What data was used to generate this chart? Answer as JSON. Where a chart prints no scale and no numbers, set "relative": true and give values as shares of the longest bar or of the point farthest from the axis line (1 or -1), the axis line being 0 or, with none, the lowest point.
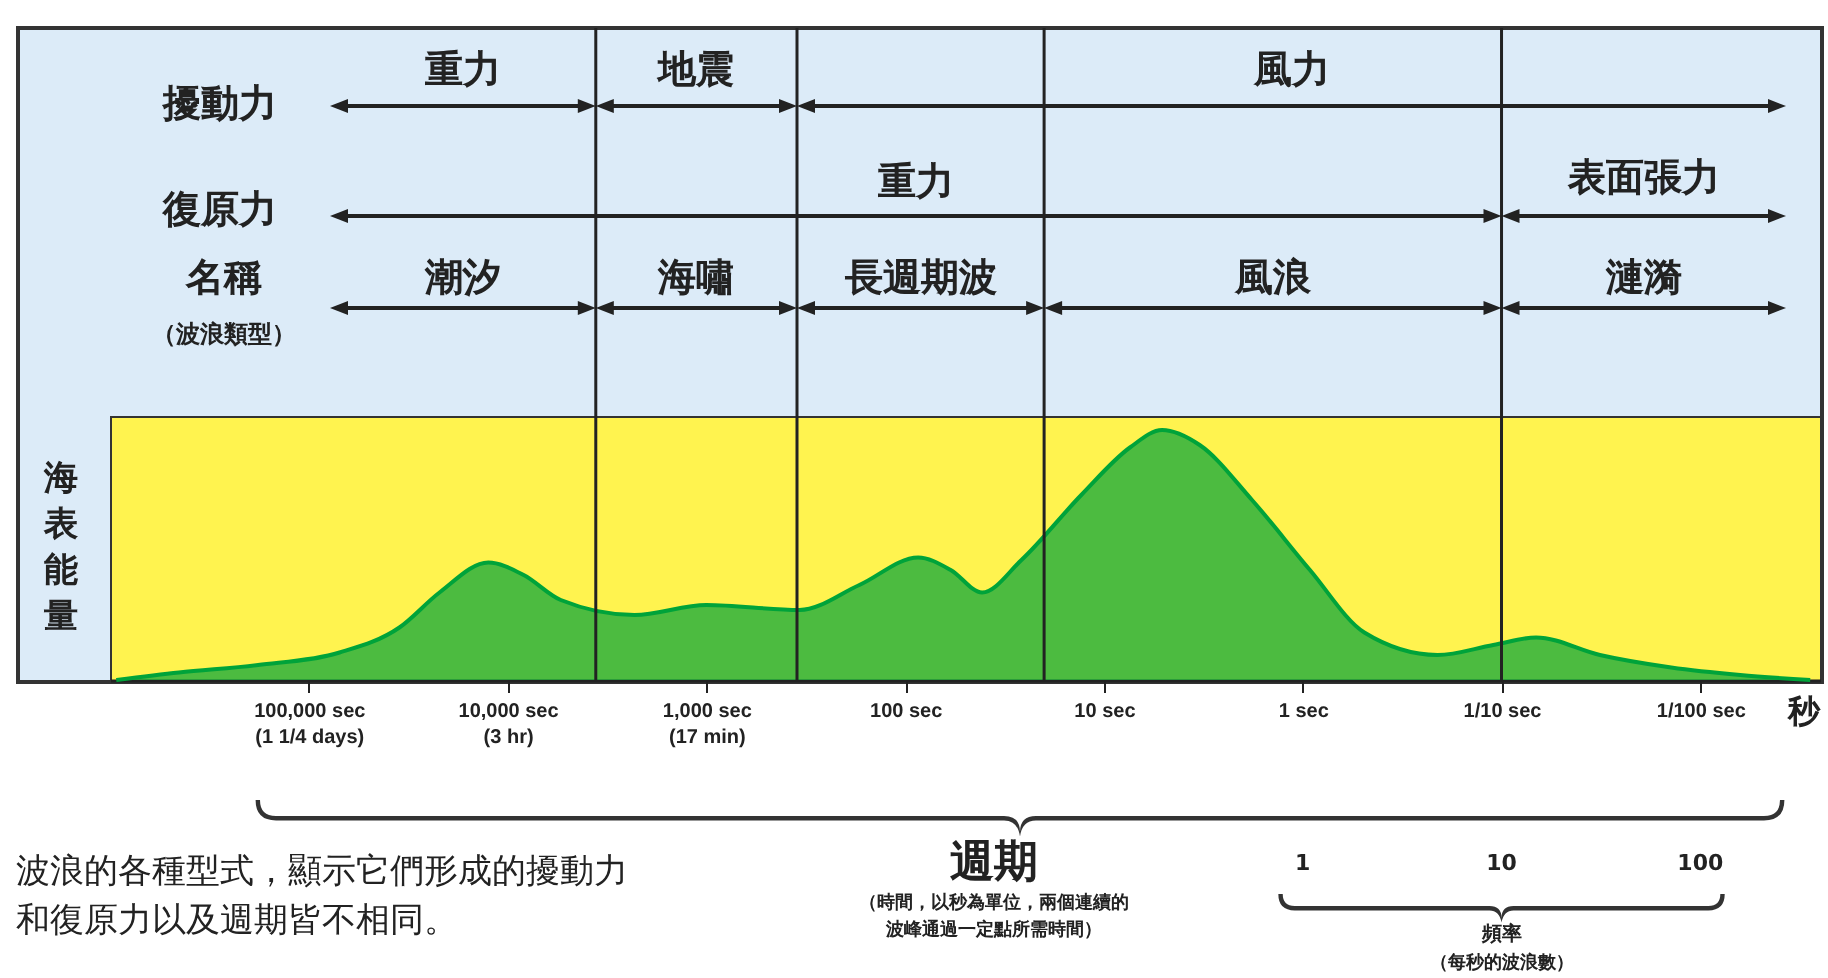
{
  "chart_data": {
    "type": "area",
    "relative": true,
    "log": "x",
    "xlabel": "週期",
    "ylabel": "海表能量",
    "xlim": [
      1000000,
      0.0025
    ],
    "xticks": [
      {
        "value": 100000,
        "label": "100,000 sec\n(1 1/4 days)"
      },
      {
        "value": 10000,
        "label": "10,000 sec\n(3 hr)"
      },
      {
        "value": 1000,
        "label": "1,000 sec\n(17 min)"
      },
      {
        "value": 100,
        "label": "100 sec"
      },
      {
        "value": 10,
        "label": "10 sec"
      },
      {
        "value": 1,
        "label": "1 sec"
      },
      {
        "value": 0.1,
        "label": "1/10 sec"
      },
      {
        "value": 0.01,
        "label": "1/100 sec"
      }
    ],
    "x": [
      930000,
      450000,
      180000,
      70000,
      35000,
      22000,
      12500,
      8300,
      5400,
      2300,
      1000,
      340,
      170,
      86,
      59,
      41,
      26,
      13,
      7.4,
      5.1,
      3.3,
      1.8,
      0.92,
      0.49,
      0.21,
      0.11,
      0.067,
      0.032,
      0.014,
      0.0063,
      0.0028
    ],
    "series": [
      {
        "color": "#00a33a",
        "values": [
          0,
          0.03,
          0.06,
          0.11,
          0.21,
          0.35,
          0.47,
          0.42,
          0.32,
          0.26,
          0.3,
          0.28,
          0.38,
          0.49,
          0.44,
          0.35,
          0.48,
          0.74,
          0.93,
          1,
          0.94,
          0.72,
          0.44,
          0.19,
          0.1,
          0.14,
          0.17,
          0.1,
          0.05,
          0.02,
          0
        ]
      }
    ],
    "ref_lines": [
      {
        "axis": "x",
        "value": 3600,
        "color": "#222222"
      },
      {
        "axis": "x",
        "value": 350,
        "color": "#222222"
      },
      {
        "axis": "x",
        "value": 20,
        "color": "#222222"
      },
      {
        "axis": "x",
        "value": 0.1,
        "color": "#222222"
      }
    ],
    "annotations": [
      "擾動力",
      "復原力",
      "名稱",
      "（波浪類型）",
      "重力",
      "地震",
      "風力",
      "重力",
      "表面張力",
      "潮汐",
      "海嘯",
      "長週期波",
      "風浪",
      "漣漪",
      "秒",
      "（時間，以秒為單位，兩個連續的波峰通過一定點所需時間）",
      "（每秒的波浪數）",
      "波浪的各種型式，顯示它們形成的擾動力和復原力以及週期皆不相同。",
      "1",
      "10",
      "100",
      "頻率"
    ]
  }
}
